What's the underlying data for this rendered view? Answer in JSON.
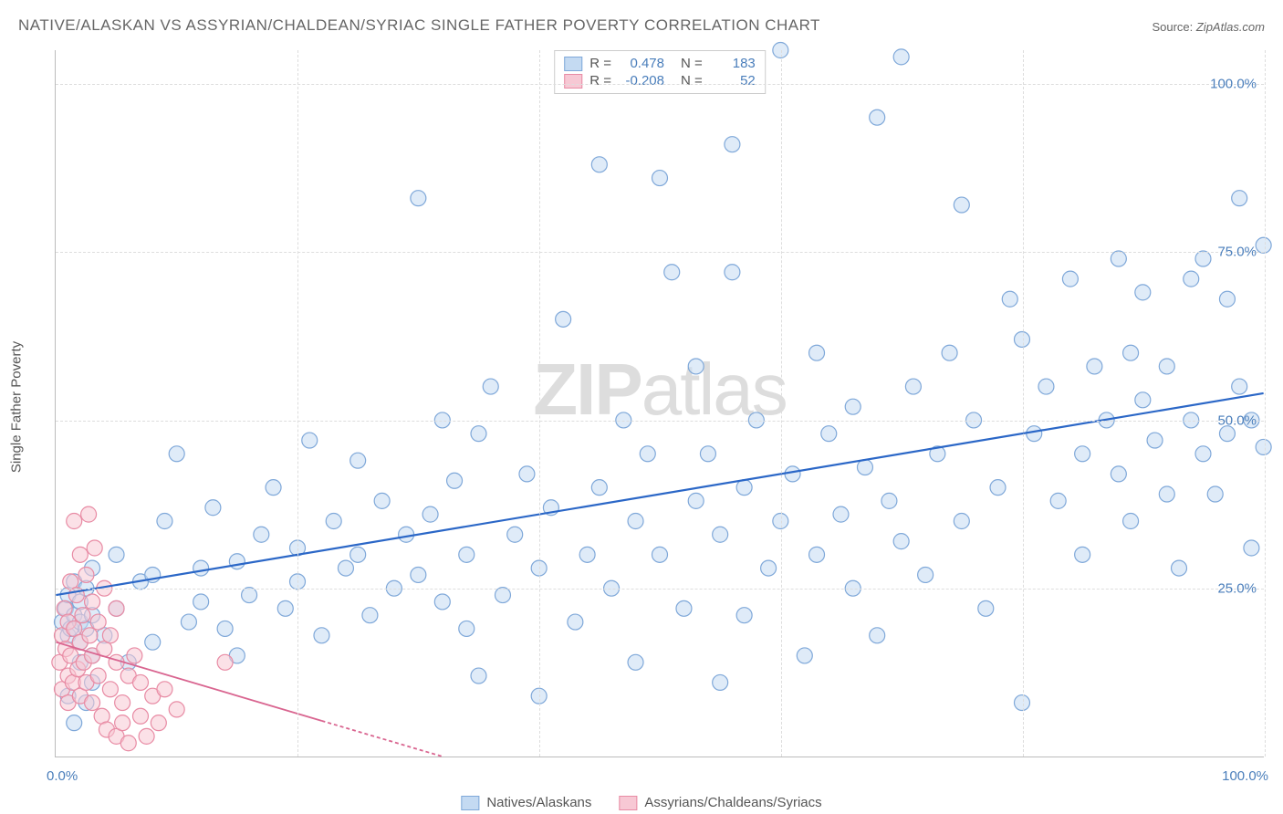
{
  "title": "NATIVE/ALASKAN VS ASSYRIAN/CHALDEAN/SYRIAC SINGLE FATHER POVERTY CORRELATION CHART",
  "source_label": "Source: ",
  "source_value": "ZipAtlas.com",
  "y_axis_title": "Single Father Poverty",
  "watermark_bold": "ZIP",
  "watermark_light": "atlas",
  "chart": {
    "type": "scatter",
    "xlim": [
      0,
      100
    ],
    "ylim": [
      0,
      105
    ],
    "x_ticks": [
      0,
      20,
      40,
      60,
      80,
      100
    ],
    "y_ticks": [
      25,
      50,
      75,
      100
    ],
    "x_tick_labels": {
      "0": "0.0%",
      "100": "100.0%"
    },
    "y_tick_labels": {
      "25": "25.0%",
      "50": "50.0%",
      "75": "75.0%",
      "100": "100.0%"
    },
    "grid_color": "#dddddd",
    "axis_color": "#bbbbbb",
    "background": "#ffffff",
    "tick_label_color": "#4a7ebb",
    "tick_label_fontsize": 15,
    "marker_radius": 8.5,
    "marker_stroke_width": 1.2,
    "series": [
      {
        "name": "Natives/Alaskans",
        "fill": "#c4daf2",
        "stroke": "#7fa8d9",
        "fill_opacity": 0.55,
        "R": "0.478",
        "N": "183",
        "trend": {
          "x1": 0,
          "y1": 24,
          "x2": 100,
          "y2": 54,
          "color": "#2b67c7",
          "width": 2.2,
          "dash": "none"
        },
        "points": [
          [
            0.5,
            20
          ],
          [
            0.8,
            22
          ],
          [
            1,
            18
          ],
          [
            1,
            24
          ],
          [
            1.2,
            19
          ],
          [
            1.5,
            21
          ],
          [
            1.5,
            26
          ],
          [
            2,
            17
          ],
          [
            2,
            23
          ],
          [
            2,
            20
          ],
          [
            2.5,
            25
          ],
          [
            2.5,
            19
          ],
          [
            3,
            21
          ],
          [
            3,
            28
          ],
          [
            1,
            9
          ],
          [
            1.5,
            5
          ],
          [
            2,
            14
          ],
          [
            2.5,
            8
          ],
          [
            3,
            11
          ],
          [
            3,
            15
          ],
          [
            4,
            18
          ],
          [
            5,
            30
          ],
          [
            5,
            22
          ],
          [
            6,
            14
          ],
          [
            7,
            26
          ],
          [
            8,
            27
          ],
          [
            8,
            17
          ],
          [
            9,
            35
          ],
          [
            10,
            45
          ],
          [
            11,
            20
          ],
          [
            12,
            23
          ],
          [
            12,
            28
          ],
          [
            13,
            37
          ],
          [
            14,
            19
          ],
          [
            15,
            29
          ],
          [
            15,
            15
          ],
          [
            16,
            24
          ],
          [
            17,
            33
          ],
          [
            18,
            40
          ],
          [
            19,
            22
          ],
          [
            20,
            26
          ],
          [
            20,
            31
          ],
          [
            21,
            47
          ],
          [
            22,
            18
          ],
          [
            23,
            35
          ],
          [
            24,
            28
          ],
          [
            25,
            30
          ],
          [
            25,
            44
          ],
          [
            26,
            21
          ],
          [
            27,
            38
          ],
          [
            28,
            25
          ],
          [
            29,
            33
          ],
          [
            30,
            83
          ],
          [
            30,
            27
          ],
          [
            31,
            36
          ],
          [
            32,
            23
          ],
          [
            32,
            50
          ],
          [
            33,
            41
          ],
          [
            34,
            19
          ],
          [
            34,
            30
          ],
          [
            35,
            48
          ],
          [
            35,
            12
          ],
          [
            36,
            55
          ],
          [
            37,
            24
          ],
          [
            38,
            33
          ],
          [
            39,
            42
          ],
          [
            40,
            9
          ],
          [
            40,
            28
          ],
          [
            41,
            37
          ],
          [
            42,
            65
          ],
          [
            43,
            20
          ],
          [
            44,
            30
          ],
          [
            45,
            88
          ],
          [
            45,
            40
          ],
          [
            46,
            25
          ],
          [
            47,
            50
          ],
          [
            48,
            35
          ],
          [
            48,
            14
          ],
          [
            49,
            45
          ],
          [
            50,
            86
          ],
          [
            50,
            30
          ],
          [
            51,
            72
          ],
          [
            52,
            22
          ],
          [
            53,
            38
          ],
          [
            53,
            58
          ],
          [
            54,
            45
          ],
          [
            55,
            11
          ],
          [
            55,
            33
          ],
          [
            56,
            72
          ],
          [
            56,
            91
          ],
          [
            57,
            40
          ],
          [
            57,
            21
          ],
          [
            58,
            50
          ],
          [
            59,
            28
          ],
          [
            60,
            35
          ],
          [
            60,
            105
          ],
          [
            61,
            42
          ],
          [
            62,
            15
          ],
          [
            63,
            60
          ],
          [
            63,
            30
          ],
          [
            64,
            48
          ],
          [
            65,
            36
          ],
          [
            66,
            25
          ],
          [
            66,
            52
          ],
          [
            67,
            43
          ],
          [
            68,
            95
          ],
          [
            68,
            18
          ],
          [
            69,
            38
          ],
          [
            70,
            104
          ],
          [
            70,
            32
          ],
          [
            71,
            55
          ],
          [
            72,
            27
          ],
          [
            73,
            45
          ],
          [
            74,
            60
          ],
          [
            75,
            82
          ],
          [
            75,
            35
          ],
          [
            76,
            50
          ],
          [
            77,
            22
          ],
          [
            78,
            40
          ],
          [
            79,
            68
          ],
          [
            80,
            62
          ],
          [
            80,
            8
          ],
          [
            81,
            48
          ],
          [
            82,
            55
          ],
          [
            83,
            38
          ],
          [
            84,
            71
          ],
          [
            85,
            45
          ],
          [
            85,
            30
          ],
          [
            86,
            58
          ],
          [
            87,
            50
          ],
          [
            88,
            42
          ],
          [
            88,
            74
          ],
          [
            89,
            35
          ],
          [
            89,
            60
          ],
          [
            90,
            53
          ],
          [
            90,
            69
          ],
          [
            91,
            47
          ],
          [
            92,
            58
          ],
          [
            92,
            39
          ],
          [
            93,
            28
          ],
          [
            94,
            50
          ],
          [
            94,
            71
          ],
          [
            95,
            45
          ],
          [
            95,
            74
          ],
          [
            96,
            39
          ],
          [
            97,
            68
          ],
          [
            97,
            48
          ],
          [
            98,
            55
          ],
          [
            98,
            83
          ],
          [
            99,
            50
          ],
          [
            99,
            31
          ],
          [
            100,
            76
          ],
          [
            100,
            46
          ]
        ]
      },
      {
        "name": "Assyrians/Chaldeans/Syriacs",
        "fill": "#f7c8d4",
        "stroke": "#e88ba4",
        "fill_opacity": 0.55,
        "R": "-0.208",
        "N": "52",
        "trend": {
          "x1": 0,
          "y1": 17,
          "x2": 32,
          "y2": 0,
          "color": "#d96590",
          "width": 1.8,
          "dash": "4,3"
        },
        "trend_solid_until": 22,
        "points": [
          [
            0.3,
            14
          ],
          [
            0.5,
            18
          ],
          [
            0.5,
            10
          ],
          [
            0.7,
            22
          ],
          [
            0.8,
            16
          ],
          [
            1,
            12
          ],
          [
            1,
            20
          ],
          [
            1,
            8
          ],
          [
            1.2,
            26
          ],
          [
            1.2,
            15
          ],
          [
            1.4,
            11
          ],
          [
            1.5,
            35
          ],
          [
            1.5,
            19
          ],
          [
            1.7,
            24
          ],
          [
            1.8,
            13
          ],
          [
            2,
            17
          ],
          [
            2,
            30
          ],
          [
            2,
            9
          ],
          [
            2.2,
            21
          ],
          [
            2.3,
            14
          ],
          [
            2.5,
            27
          ],
          [
            2.5,
            11
          ],
          [
            2.7,
            36
          ],
          [
            2.8,
            18
          ],
          [
            3,
            23
          ],
          [
            3,
            8
          ],
          [
            3,
            15
          ],
          [
            3.2,
            31
          ],
          [
            3.5,
            12
          ],
          [
            3.5,
            20
          ],
          [
            3.8,
            6
          ],
          [
            4,
            16
          ],
          [
            4,
            25
          ],
          [
            4.2,
            4
          ],
          [
            4.5,
            10
          ],
          [
            4.5,
            18
          ],
          [
            5,
            3
          ],
          [
            5,
            14
          ],
          [
            5,
            22
          ],
          [
            5.5,
            8
          ],
          [
            5.5,
            5
          ],
          [
            6,
            12
          ],
          [
            6,
            2
          ],
          [
            6.5,
            15
          ],
          [
            7,
            6
          ],
          [
            7,
            11
          ],
          [
            7.5,
            3
          ],
          [
            8,
            9
          ],
          [
            8.5,
            5
          ],
          [
            9,
            10
          ],
          [
            10,
            7
          ],
          [
            14,
            14
          ]
        ]
      }
    ]
  },
  "stats_legend_labels": {
    "R": "R =",
    "N": "N ="
  },
  "bottom_legend": [
    "Natives/Alaskans",
    "Assyrians/Chaldeans/Syriacs"
  ]
}
